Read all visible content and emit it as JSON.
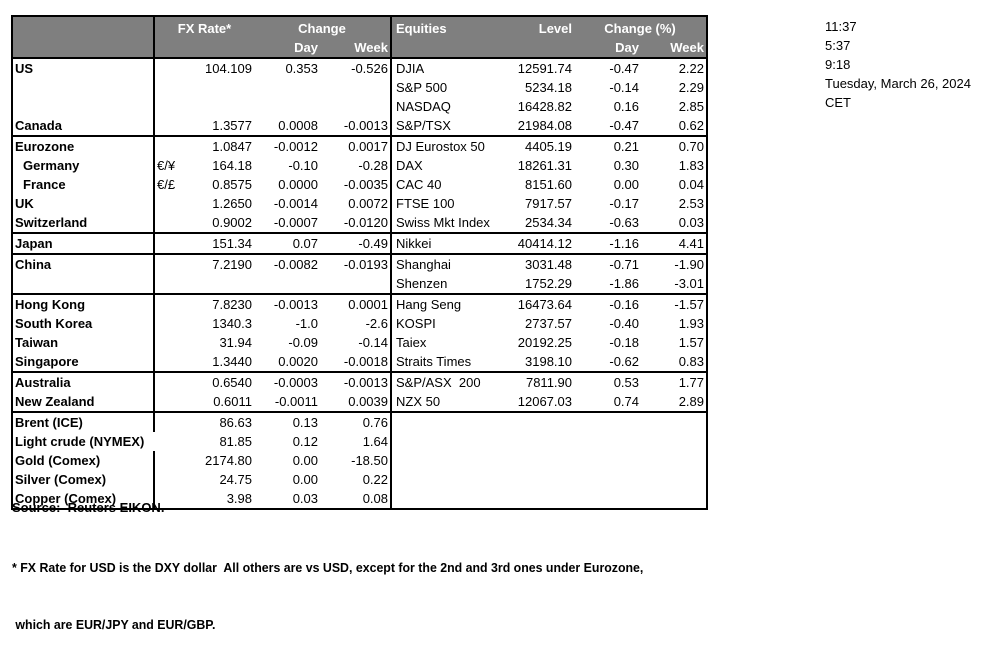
{
  "clock": {
    "lines": [
      "11:37",
      "5:37",
      "9:18",
      "Tuesday, March 26, 2024",
      "CET"
    ]
  },
  "table": {
    "fx_header": {
      "rate": "FX Rate*",
      "change": "Change",
      "day": "Day",
      "week": "Week"
    },
    "eq_header": {
      "equities": "Equities",
      "level": "Level",
      "change": "Change (%)",
      "day": "Day",
      "week": "Week"
    },
    "rows": [
      {
        "name": "US",
        "pair": "",
        "rate": "104.109",
        "day": "0.353",
        "week": "-0.526",
        "eq": "DJIA",
        "level": "12591.74",
        "eq_day": "-0.47",
        "eq_week": "2.22",
        "indent": false,
        "section_end": false
      },
      {
        "name": "",
        "pair": "",
        "rate": "",
        "day": "",
        "week": "",
        "eq": "S&P 500",
        "level": "5234.18",
        "eq_day": "-0.14",
        "eq_week": "2.29",
        "indent": false,
        "section_end": false
      },
      {
        "name": "",
        "pair": "",
        "rate": "",
        "day": "",
        "week": "",
        "eq": "NASDAQ",
        "level": "16428.82",
        "eq_day": "0.16",
        "eq_week": "2.85",
        "indent": false,
        "section_end": false
      },
      {
        "name": "Canada",
        "pair": "",
        "rate": "1.3577",
        "day": "0.0008",
        "week": "-0.0013",
        "eq": "S&P/TSX",
        "level": "21984.08",
        "eq_day": "-0.47",
        "eq_week": "0.62",
        "indent": false,
        "section_end": true
      },
      {
        "name": "Eurozone",
        "pair": "",
        "rate": "1.0847",
        "day": "-0.0012",
        "week": "0.0017",
        "eq": "DJ Eurostox 50",
        "level": "4405.19",
        "eq_day": "0.21",
        "eq_week": "0.70",
        "indent": false,
        "section_end": false
      },
      {
        "name": "Germany",
        "pair": "€/¥",
        "rate": "164.18",
        "day": "-0.10",
        "week": "-0.28",
        "eq": "DAX",
        "level": "18261.31",
        "eq_day": "0.30",
        "eq_week": "1.83",
        "indent": true,
        "section_end": false
      },
      {
        "name": "France",
        "pair": "€/£",
        "rate": "0.8575",
        "day": "0.0000",
        "week": "-0.0035",
        "eq": "CAC 40",
        "level": "8151.60",
        "eq_day": "0.00",
        "eq_week": "0.04",
        "indent": true,
        "section_end": false
      },
      {
        "name": "UK",
        "pair": "",
        "rate": "1.2650",
        "day": "-0.0014",
        "week": "0.0072",
        "eq": "FTSE 100",
        "level": "7917.57",
        "eq_day": "-0.17",
        "eq_week": "2.53",
        "indent": false,
        "section_end": false
      },
      {
        "name": "Switzerland",
        "pair": "",
        "rate": "0.9002",
        "day": "-0.0007",
        "week": "-0.0120",
        "eq": "Swiss Mkt Index",
        "level": "2534.34",
        "eq_day": "-0.63",
        "eq_week": "0.03",
        "indent": false,
        "section_end": true
      },
      {
        "name": "Japan",
        "pair": "",
        "rate": "151.34",
        "day": "0.07",
        "week": "-0.49",
        "eq": "Nikkei",
        "level": "40414.12",
        "eq_day": "-1.16",
        "eq_week": "4.41",
        "indent": false,
        "section_end": true
      },
      {
        "name": "China",
        "pair": "",
        "rate": "7.2190",
        "day": "-0.0082",
        "week": "-0.0193",
        "eq": "Shanghai",
        "level": "3031.48",
        "eq_day": "-0.71",
        "eq_week": "-1.90",
        "indent": false,
        "section_end": false
      },
      {
        "name": "",
        "pair": "",
        "rate": "",
        "day": "",
        "week": "",
        "eq": "Shenzen",
        "level": "1752.29",
        "eq_day": "-1.86",
        "eq_week": "-3.01",
        "indent": false,
        "section_end": true
      },
      {
        "name": "Hong Kong",
        "pair": "",
        "rate": "7.8230",
        "day": "-0.0013",
        "week": "0.0001",
        "eq": "Hang Seng",
        "level": "16473.64",
        "eq_day": "-0.16",
        "eq_week": "-1.57",
        "indent": false,
        "section_end": false
      },
      {
        "name": "South Korea",
        "pair": "",
        "rate": "1340.3",
        "day": "-1.0",
        "week": "-2.6",
        "eq": "KOSPI",
        "level": "2737.57",
        "eq_day": "-0.40",
        "eq_week": "1.93",
        "indent": false,
        "section_end": false
      },
      {
        "name": "Taiwan",
        "pair": "",
        "rate": "31.94",
        "day": "-0.09",
        "week": "-0.14",
        "eq": "Taiex",
        "level": "20192.25",
        "eq_day": "-0.18",
        "eq_week": "1.57",
        "indent": false,
        "section_end": false
      },
      {
        "name": "Singapore",
        "pair": "",
        "rate": "1.3440",
        "day": "0.0020",
        "week": "-0.0018",
        "eq": "Straits Times",
        "level": "3198.10",
        "eq_day": "-0.62",
        "eq_week": "0.83",
        "indent": false,
        "section_end": true
      },
      {
        "name": "Australia",
        "pair": "",
        "rate": "0.6540",
        "day": "-0.0003",
        "week": "-0.0013",
        "eq": "S&P/ASX  200",
        "level": "7811.90",
        "eq_day": "0.53",
        "eq_week": "1.77",
        "indent": false,
        "section_end": false
      },
      {
        "name": "New Zealand",
        "pair": "",
        "rate": "0.6011",
        "day": "-0.0011",
        "week": "0.0039",
        "eq": "NZX 50",
        "level": "12067.03",
        "eq_day": "0.74",
        "eq_week": "2.89",
        "indent": false,
        "section_end": true
      },
      {
        "name": "Brent (ICE)",
        "pair": "",
        "rate": "86.63",
        "day": "0.13",
        "week": "0.76",
        "eq": "",
        "level": "",
        "eq_day": "",
        "eq_week": "",
        "indent": false,
        "section_end": false
      },
      {
        "name": "Light crude (NYMEX)",
        "pair": "",
        "rate": "81.85",
        "day": "0.12",
        "week": "1.64",
        "eq": "",
        "level": "",
        "eq_day": "",
        "eq_week": "",
        "indent": false,
        "section_end": false
      },
      {
        "name": "Gold (Comex)",
        "pair": "",
        "rate": "2174.80",
        "day": "0.00",
        "week": "-18.50",
        "eq": "",
        "level": "",
        "eq_day": "",
        "eq_week": "",
        "indent": false,
        "section_end": false
      },
      {
        "name": "Silver (Comex)",
        "pair": "",
        "rate": "24.75",
        "day": "0.00",
        "week": "0.22",
        "eq": "",
        "level": "",
        "eq_day": "",
        "eq_week": "",
        "indent": false,
        "section_end": false
      },
      {
        "name": "Copper (Comex)",
        "pair": "",
        "rate": "3.98",
        "day": "0.03",
        "week": "0.08",
        "eq": "",
        "level": "",
        "eq_day": "",
        "eq_week": "",
        "indent": false,
        "section_end": false
      }
    ]
  },
  "source": "Source:  Reuters EIKON.",
  "footnote": {
    "line1": "* FX Rate for USD is the DXY dollar  All others are vs USD, except for the 2nd and 3rd ones under Eurozone,",
    "line2": " which are EUR/JPY and EUR/GBP."
  },
  "colors": {
    "header_bg": "#7f7f7f",
    "header_text": "#ffffff",
    "border": "#000000"
  }
}
